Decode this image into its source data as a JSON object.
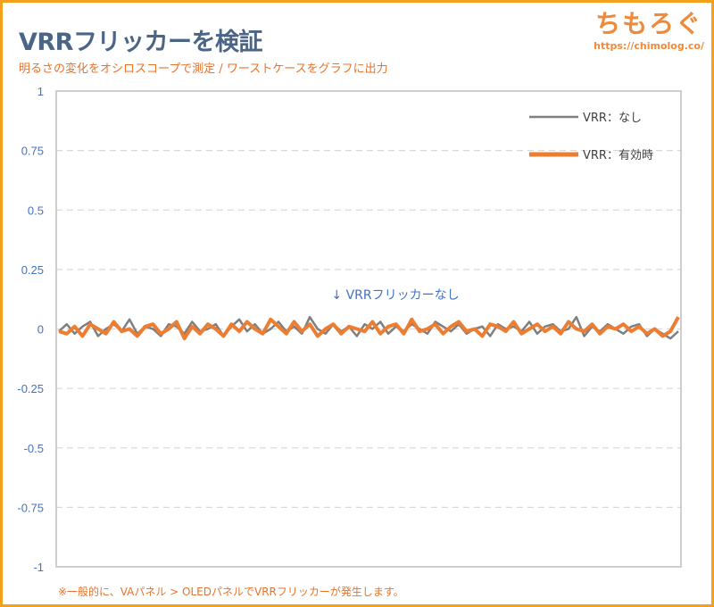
{
  "header": {
    "title": "VRRフリッカーを検証",
    "subtitle": "明るさの変化をオシロスコープで測定 / ワーストケースをグラフに出力"
  },
  "logo": {
    "text": "ちもろぐ",
    "url": "https://chimolog.co/"
  },
  "footnote": "※一般的に、VAパネル > OLEDパネルでVRRフリッカーが発生します。",
  "chart_data": {
    "type": "line",
    "title": "VRRフリッカーを検証",
    "xlabel": "",
    "ylabel": "",
    "ylim": [
      -1,
      1
    ],
    "yticks": [
      "1",
      "0.75",
      "0.5",
      "0.25",
      "0",
      "-0.25",
      "-0.5",
      "-0.75",
      "-1"
    ],
    "ytick_values": [
      1,
      0.75,
      0.5,
      0.25,
      0,
      -0.25,
      -0.5,
      -0.75,
      -1
    ],
    "grid": "horizontal dashed",
    "legend": "top-right",
    "annotation": "↓ VRRフリッカーなし",
    "series": [
      {
        "name": "VRR：なし",
        "color": "#7f7f7f",
        "values": [
          -0.01,
          0.02,
          -0.02,
          0.01,
          0.03,
          -0.03,
          0.0,
          0.02,
          -0.01,
          0.04,
          -0.02,
          0.01,
          0.0,
          -0.03,
          0.02,
          0.01,
          -0.02,
          0.03,
          -0.01,
          0.0,
          0.02,
          -0.03,
          0.01,
          0.04,
          -0.01,
          0.02,
          -0.02,
          0.0,
          0.03,
          -0.01,
          0.01,
          -0.02,
          0.05,
          0.0,
          -0.02,
          0.02,
          -0.01,
          0.01,
          -0.03,
          0.02,
          0.0,
          0.03,
          -0.02,
          0.01,
          -0.01,
          0.02,
          0.0,
          -0.02,
          0.03,
          0.01,
          -0.01,
          0.02,
          -0.02,
          0.0,
          0.01,
          -0.03,
          0.02,
          0.0,
          0.01,
          -0.01,
          0.03,
          -0.02,
          0.01,
          0.02,
          -0.01,
          0.0,
          0.05,
          -0.03,
          0.01,
          -0.01,
          0.02,
          0.0,
          -0.02,
          0.01,
          0.02,
          -0.03,
          0.0,
          -0.02,
          -0.04,
          -0.01
        ]
      },
      {
        "name": "VRR：有効時",
        "color": "#ed7d31",
        "values": [
          -0.01,
          -0.02,
          0.01,
          -0.03,
          0.02,
          0.0,
          -0.02,
          0.03,
          -0.01,
          0.0,
          -0.03,
          0.01,
          0.02,
          -0.02,
          0.0,
          0.03,
          -0.04,
          0.01,
          -0.02,
          0.02,
          0.0,
          -0.03,
          0.02,
          -0.01,
          0.03,
          0.0,
          -0.02,
          0.04,
          0.01,
          -0.02,
          0.03,
          -0.01,
          0.02,
          -0.03,
          0.0,
          0.02,
          -0.02,
          0.01,
          0.0,
          -0.01,
          0.03,
          -0.02,
          0.01,
          0.02,
          -0.02,
          0.04,
          -0.01,
          0.0,
          0.02,
          -0.02,
          0.01,
          0.03,
          -0.01,
          0.0,
          -0.03,
          0.02,
          0.01,
          -0.01,
          0.03,
          -0.02,
          0.0,
          0.02,
          -0.01,
          0.01,
          -0.02,
          0.03,
          0.0,
          -0.01,
          0.02,
          -0.02,
          0.01,
          0.0,
          0.02,
          -0.01,
          0.01,
          -0.02,
          0.0,
          -0.03,
          -0.01,
          0.05
        ]
      }
    ]
  }
}
